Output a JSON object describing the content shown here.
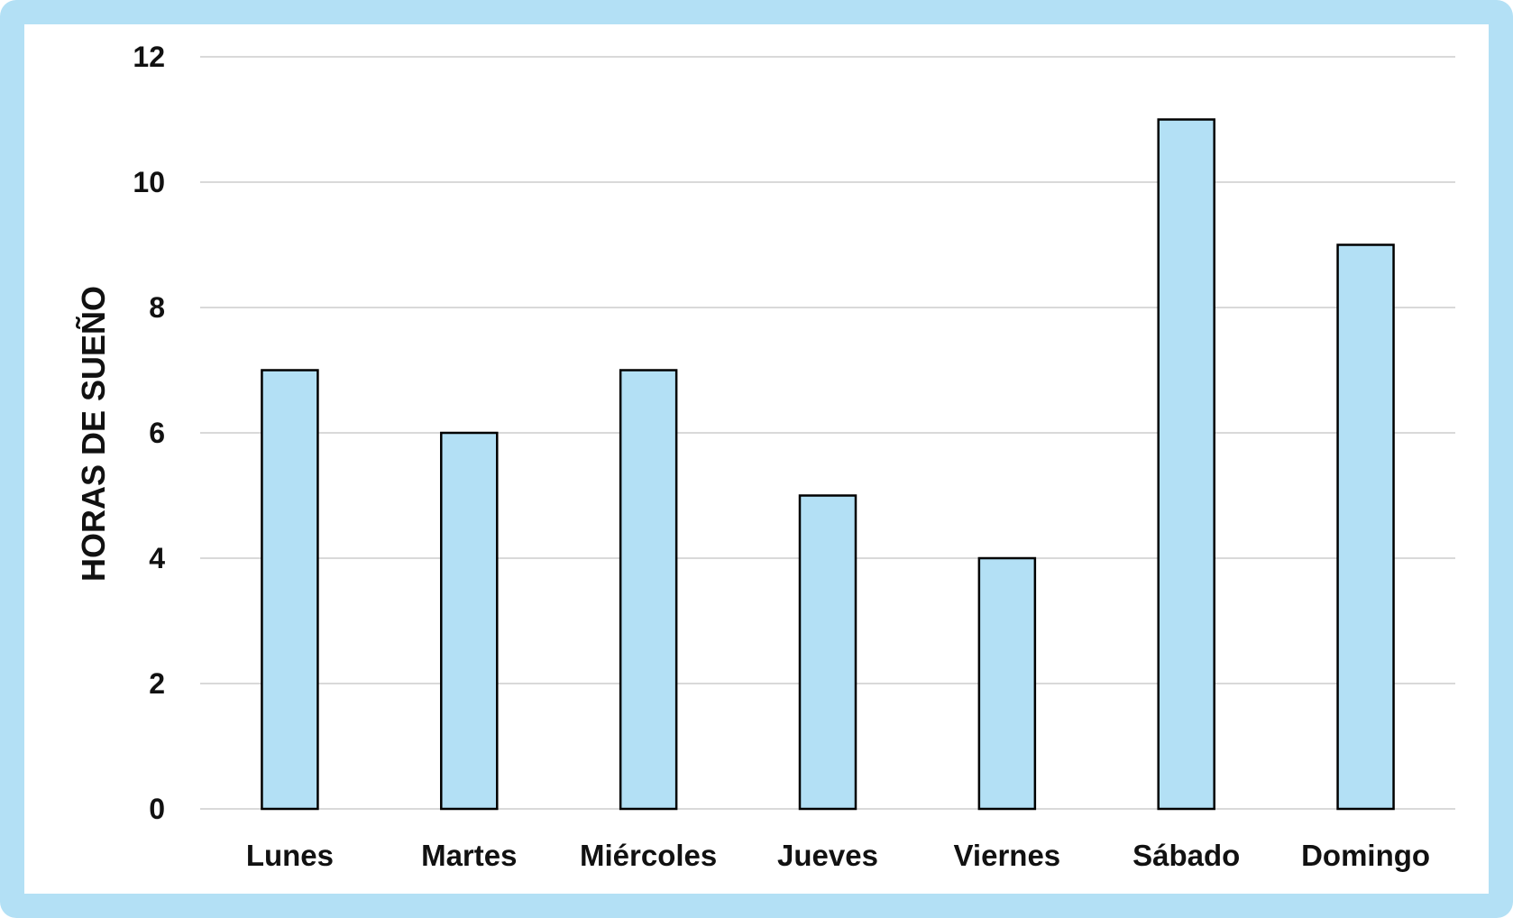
{
  "chart_data": {
    "type": "bar",
    "categories": [
      "Lunes",
      "Martes",
      "Miércoles",
      "Jueves",
      "Viernes",
      "Sábado",
      "Domingo"
    ],
    "values": [
      7,
      6,
      7,
      5,
      4,
      11,
      9
    ],
    "title": "",
    "xlabel": "",
    "ylabel": "HORAS DE SUEÑO",
    "ylim": [
      0,
      12
    ],
    "yticks": [
      0,
      2,
      4,
      6,
      8,
      10,
      12
    ],
    "grid": true,
    "legend": "none",
    "colors": {
      "bar_fill": "#b3e0f5",
      "bar_stroke": "#000000",
      "frame": "#b3e0f5",
      "gridline": "#d9d9d9"
    }
  }
}
